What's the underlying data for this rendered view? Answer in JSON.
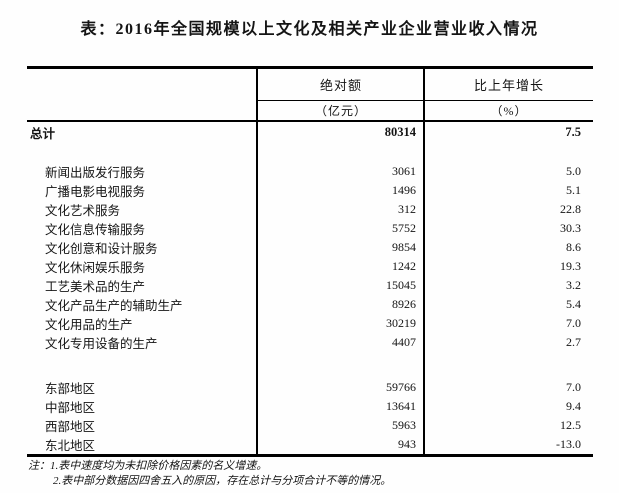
{
  "page": {
    "title": "表：2016年全国规模以上文化及相关产业企业营业收入情况"
  },
  "table": {
    "header": {
      "value_label": "绝对额",
      "value_unit": "（亿元）",
      "growth_label": "比上年增长",
      "growth_unit": "（%）"
    },
    "rows": [
      {
        "type": "total",
        "label": "总计",
        "value": "80314",
        "growth": "7.5"
      },
      {
        "type": "spacer"
      },
      {
        "type": "item",
        "label": "新闻出版发行服务",
        "value": "3061",
        "growth": "5.0"
      },
      {
        "type": "item",
        "label": "广播电影电视服务",
        "value": "1496",
        "growth": "5.1"
      },
      {
        "type": "item",
        "label": "文化艺术服务",
        "value": "312",
        "growth": "22.8"
      },
      {
        "type": "item",
        "label": "文化信息传输服务",
        "value": "5752",
        "growth": "30.3"
      },
      {
        "type": "item",
        "label": "文化创意和设计服务",
        "value": "9854",
        "growth": "8.6"
      },
      {
        "type": "item",
        "label": "文化休闲娱乐服务",
        "value": "1242",
        "growth": "19.3"
      },
      {
        "type": "item",
        "label": "工艺美术品的生产",
        "value": "15045",
        "growth": "3.2"
      },
      {
        "type": "item",
        "label": "文化产品生产的辅助生产",
        "value": "8926",
        "growth": "5.4"
      },
      {
        "type": "item",
        "label": "文化用品的生产",
        "value": "30219",
        "growth": "7.0"
      },
      {
        "type": "item",
        "label": "文化专用设备的生产",
        "value": "4407",
        "growth": "2.7"
      },
      {
        "type": "spacer2"
      },
      {
        "type": "region",
        "label": "东部地区",
        "value": "59766",
        "growth": "7.0"
      },
      {
        "type": "region",
        "label": "中部地区",
        "value": "13641",
        "growth": "9.4"
      },
      {
        "type": "region",
        "label": "西部地区",
        "value": "5963",
        "growth": "12.5"
      },
      {
        "type": "region",
        "label": "东北地区",
        "value": "943",
        "growth": "-13.0"
      }
    ]
  },
  "notes": {
    "line1": "注：1.表中速度均为未扣除价格因素的名义增速。",
    "line2": "2.表中部分数据因四舍五入的原因，存在总计与分项合计不等的情况。"
  },
  "colors": {
    "text": "#141414",
    "border": "#000000",
    "background": "#fefefe"
  }
}
